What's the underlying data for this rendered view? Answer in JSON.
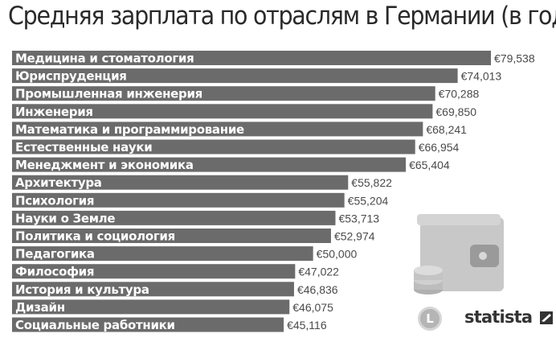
{
  "chart_data": {
    "type": "bar",
    "orientation": "horizontal",
    "title": "Средняя зарплата по отраслям в Германии (в год)",
    "categories": [
      "Медицина и стоматология",
      "Юриспруденция",
      "Промышленная инженерия",
      "Инженерия",
      "Математика и программирование",
      "Естественные науки",
      "Менеджмент и экономика",
      "Архитектура",
      "Психология",
      "Науки о Земле",
      "Политика и социология",
      "Педагогика",
      "Философия",
      "История и культура",
      "Дизайн",
      "Социальные работники"
    ],
    "values": [
      79538,
      74013,
      70288,
      69850,
      68241,
      66954,
      65404,
      55822,
      55204,
      53713,
      52974,
      50000,
      47022,
      46836,
      46075,
      45116
    ],
    "value_labels": [
      "€79,538",
      "€74,013",
      "€70,288",
      "€69,850",
      "€68,241",
      "€66,954",
      "€65,404",
      "€55,822",
      "€55,204",
      "€53,713",
      "€52,974",
      "€50,000",
      "€47,022",
      "€46,836",
      "€46,075",
      "€45,116"
    ],
    "colors": {
      "bar": "#6b6b6b",
      "bar_label": "#ffffff",
      "value_label": "#4a4a4a"
    }
  },
  "branding": {
    "circle_logo_letter": "L",
    "statista": "statista"
  },
  "icons": [
    "wallet-icon",
    "coins-icon",
    "l-logo-icon",
    "statista-logo-icon"
  ]
}
